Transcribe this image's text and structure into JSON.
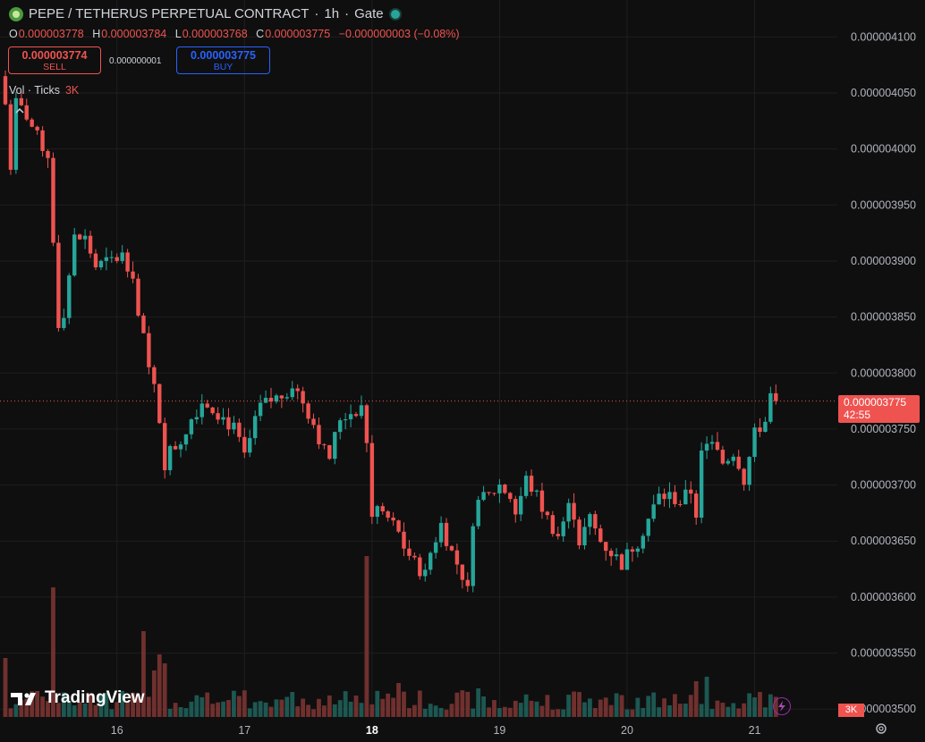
{
  "header": {
    "title": "PEPE / TETHERUS PERPETUAL CONTRACT",
    "interval": "1h",
    "exchange": "Gate",
    "sep": "·"
  },
  "ohlc": {
    "o_label": "O",
    "o": "0.000003778",
    "h_label": "H",
    "h": "0.000003784",
    "l_label": "L",
    "l": "0.000003768",
    "c_label": "C",
    "c": "0.000003775",
    "change": "−0.000000003 (−0.08%)"
  },
  "trade": {
    "sell_price": "0.000003774",
    "sell_label": "SELL",
    "spread": "0.000000001",
    "buy_price": "0.000003775",
    "buy_label": "BUY"
  },
  "volume_legend": {
    "label": "Vol · Ticks",
    "value": "3K"
  },
  "logo": "TradingView",
  "price_tag": {
    "price": "0.000003775",
    "countdown": "42:55"
  },
  "volume_tag": "3K",
  "colors": {
    "up": "#26a69a",
    "down": "#ef5350",
    "bg": "#0f0f0f",
    "grid": "#1f1f1f"
  },
  "chart_data": {
    "type": "candlestick",
    "yticks": [
      "0.000003500",
      "0.000003550",
      "0.000003600",
      "0.000003650",
      "0.000003700",
      "0.000003750",
      "0.000003800",
      "0.000003850",
      "0.000003900",
      "0.000003950",
      "0.000004000",
      "0.000004050",
      "0.000004100"
    ],
    "ylim": [
      3.493e-06,
      4.117e-06
    ],
    "xticks": [
      {
        "label": "16",
        "idx": 21,
        "bold": false
      },
      {
        "label": "17",
        "idx": 45,
        "bold": false
      },
      {
        "label": "18",
        "idx": 69,
        "bold": true
      },
      {
        "label": "19",
        "idx": 93,
        "bold": false
      },
      {
        "label": "20",
        "idx": 117,
        "bold": false
      },
      {
        "label": "21",
        "idx": 141,
        "bold": false
      }
    ],
    "last_price": 3.775e-06
  }
}
